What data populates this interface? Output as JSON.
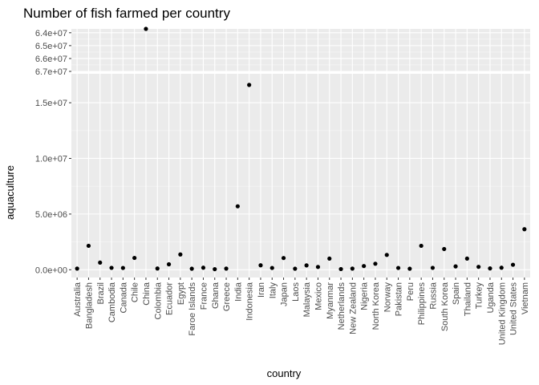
{
  "chart_data": {
    "type": "scatter",
    "title": "Number of fish farmed per country",
    "xlabel": "country",
    "ylabel": "aquaculture",
    "categories": [
      "Australia",
      "Bangladesh",
      "Brazil",
      "Cambodia",
      "Canada",
      "Chile",
      "China",
      "Colombia",
      "Ecuador",
      "Egypt",
      "Faroe Islands",
      "France",
      "Ghana",
      "Greece",
      "India",
      "Indonesia",
      "Iran",
      "Italy",
      "Japan",
      "Laos",
      "Malaysia",
      "Mexico",
      "Myanmar",
      "Netherlands",
      "New Zealand",
      "Nigeria",
      "North Korea",
      "Norway",
      "Pakistan",
      "Peru",
      "Philippines",
      "Russia",
      "South Korea",
      "Spain",
      "Thailand",
      "Turkey",
      "Uganda",
      "United Kingdom",
      "United States",
      "Vietnam"
    ],
    "values": [
      100000,
      2150000,
      640000,
      170000,
      160000,
      1060000,
      63700000,
      110000,
      490000,
      1370000,
      90000,
      180000,
      50000,
      100000,
      5700000,
      16600000,
      400000,
      160000,
      1050000,
      90000,
      390000,
      250000,
      1000000,
      60000,
      100000,
      330000,
      540000,
      1330000,
      160000,
      90000,
      2150000,
      170000,
      1860000,
      300000,
      1000000,
      260000,
      120000,
      180000,
      450000,
      3640000
    ],
    "y_breaks": {
      "upper": {
        "ticks": [
          64000000,
          65000000,
          66000000,
          67000000
        ],
        "tick_labels": [
          "6.4e+07",
          "6.5e+07",
          "6.6e+07",
          "6.7e+07"
        ],
        "range": [
          63700000,
          67000000
        ],
        "reversed": true
      },
      "lower": {
        "ticks": [
          0,
          5000000,
          10000000,
          15000000
        ],
        "tick_labels": [
          "0.0e+00",
          "5.0e+06",
          "1.0e+07",
          "1.5e+07"
        ],
        "range": [
          -700000,
          17600000
        ]
      }
    },
    "grid": true,
    "point_color": "#000000",
    "panel_color": "#ebebeb"
  }
}
